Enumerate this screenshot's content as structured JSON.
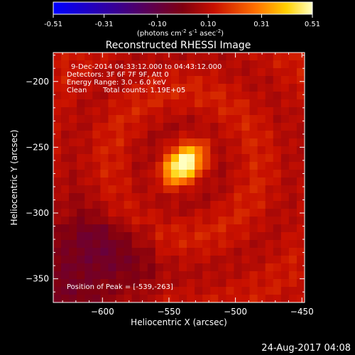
{
  "chart_data": {
    "type": "heatmap",
    "title": "Reconstructed RHESSI Image",
    "xlabel": "Heliocentric X (arcsec)",
    "ylabel": "Heliocentric Y (arcsec)",
    "xlim": [
      -637,
      -448
    ],
    "ylim": [
      -368,
      -178
    ],
    "x_ticks": [
      -600,
      -550,
      -500,
      -450
    ],
    "y_ticks": [
      -200,
      -250,
      -300,
      -350
    ],
    "colorbar": {
      "min": -0.51,
      "max": 0.51,
      "ticks": [
        -0.51,
        -0.31,
        -0.1,
        0.1,
        0.31,
        0.51
      ],
      "tick_labels": [
        "-0.51",
        "-0.31",
        "-0.10",
        "0.10",
        "0.31",
        "0.51"
      ],
      "units_main": "(photons cm",
      "units_sup1": "-2",
      "units_mid1": " s",
      "units_sup2": "-1",
      "units_mid2": " asec",
      "units_sup3": "-2",
      "units_end": ")"
    },
    "annotations": {
      "time_range": "9-Dec-2014 04:33:12.000 to 04:43:12.000",
      "detectors": "Detectors: 3F 6F 7F 9F, Att 0",
      "energy": "Energy Range: 3.0 - 6.0 keV",
      "method": "Clean",
      "counts": "Total counts: 1.19E+05",
      "peak": "Position of Peak = [-539,-263]"
    },
    "peak": {
      "x": -539,
      "y": -263,
      "value": 0.51
    },
    "background_level": 0.11,
    "low_region": {
      "x": -615,
      "y": -340,
      "value": -0.03
    }
  },
  "footer": {
    "date": "24-Aug-2017 04:08"
  },
  "colors": {
    "background": "#000000",
    "axes": "#ffffff"
  }
}
